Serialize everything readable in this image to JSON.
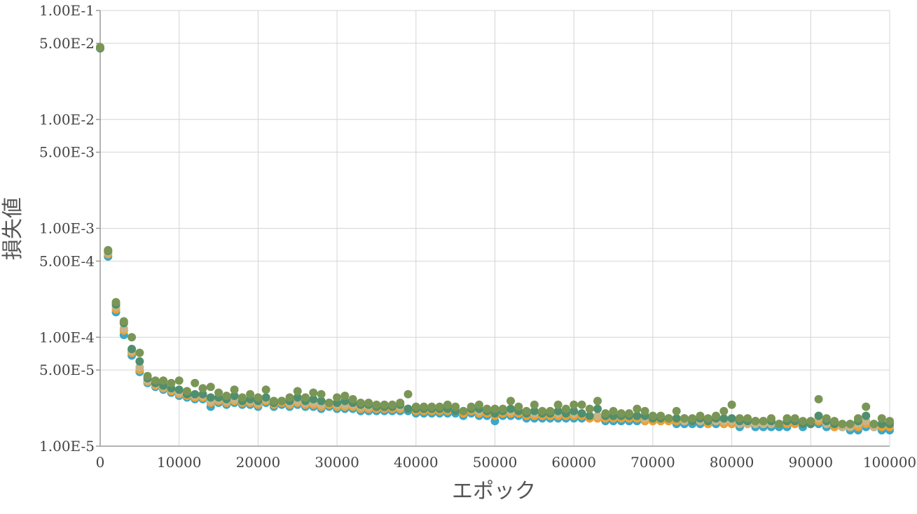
{
  "chart_data": {
    "type": "scatter",
    "title": "",
    "xlabel": "エポック",
    "ylabel": "損失値",
    "xlim": [
      0,
      100000
    ],
    "ylim": [
      1e-05,
      0.1
    ],
    "yscale": "log",
    "grid": true,
    "legend": "none",
    "x_ticks": [
      0,
      10000,
      20000,
      30000,
      40000,
      50000,
      60000,
      70000,
      80000,
      90000,
      100000
    ],
    "x_tick_labels": [
      "0",
      "10000",
      "20000",
      "30000",
      "40000",
      "50000",
      "60000",
      "70000",
      "80000",
      "90000",
      "100000"
    ],
    "y_ticks": [
      0.1,
      0.05,
      0.01,
      0.005,
      0.001,
      0.0005,
      0.0001,
      5e-05,
      1e-05
    ],
    "y_tick_labels": [
      "1.00E-1",
      "5.00E-2",
      "1.00E-2",
      "5.00E-3",
      "1.00E-3",
      "5.00E-4",
      "1.00E-4",
      "5.00E-5",
      "1.00E-5"
    ],
    "x": [
      0,
      1000,
      2000,
      3000,
      4000,
      5000,
      6000,
      7000,
      8000,
      9000,
      10000,
      11000,
      12000,
      13000,
      14000,
      15000,
      16000,
      17000,
      18000,
      19000,
      20000,
      21000,
      22000,
      23000,
      24000,
      25000,
      26000,
      27000,
      28000,
      29000,
      30000,
      31000,
      32000,
      33000,
      34000,
      35000,
      36000,
      37000,
      38000,
      39000,
      40000,
      41000,
      42000,
      43000,
      44000,
      45000,
      46000,
      47000,
      48000,
      49000,
      50000,
      51000,
      52000,
      53000,
      54000,
      55000,
      56000,
      57000,
      58000,
      59000,
      60000,
      61000,
      62000,
      63000,
      64000,
      65000,
      66000,
      67000,
      68000,
      69000,
      70000,
      71000,
      72000,
      73000,
      74000,
      75000,
      76000,
      77000,
      78000,
      79000,
      80000,
      81000,
      82000,
      83000,
      84000,
      85000,
      86000,
      87000,
      88000,
      89000,
      90000,
      91000,
      92000,
      93000,
      94000,
      95000,
      96000,
      97000,
      98000,
      99000,
      100000
    ],
    "series": [
      {
        "color": "#3aa7c9",
        "values": [
          0.045,
          0.00055,
          0.00017,
          0.000105,
          6.8e-05,
          4.8e-05,
          3.8e-05,
          3.5e-05,
          3.3e-05,
          3.1e-05,
          2.9e-05,
          2.8e-05,
          2.7e-05,
          2.7e-05,
          2.3e-05,
          2.5e-05,
          2.4e-05,
          2.5e-05,
          2.4e-05,
          2.4e-05,
          2.3e-05,
          2.5e-05,
          2.3e-05,
          2.4e-05,
          2.3e-05,
          2.4e-05,
          2.3e-05,
          2.3e-05,
          2.2e-05,
          2.3e-05,
          2.2e-05,
          2.2e-05,
          2.2e-05,
          2.1e-05,
          2.1e-05,
          2.1e-05,
          2.1e-05,
          2.1e-05,
          2.1e-05,
          2.1e-05,
          2e-05,
          2e-05,
          2e-05,
          2e-05,
          2e-05,
          2e-05,
          1.9e-05,
          2e-05,
          1.9e-05,
          1.9e-05,
          1.7e-05,
          1.9e-05,
          1.9e-05,
          1.9e-05,
          1.8e-05,
          1.8e-05,
          1.8e-05,
          1.8e-05,
          1.8e-05,
          1.8e-05,
          1.8e-05,
          1.8e-05,
          1.8e-05,
          1.8e-05,
          1.7e-05,
          1.7e-05,
          1.7e-05,
          1.7e-05,
          1.7e-05,
          1.7e-05,
          1.7e-05,
          1.7e-05,
          1.7e-05,
          1.6e-05,
          1.6e-05,
          1.6e-05,
          1.6e-05,
          1.6e-05,
          1.6e-05,
          1.6e-05,
          1.6e-05,
          1.5e-05,
          1.6e-05,
          1.5e-05,
          1.5e-05,
          1.5e-05,
          1.5e-05,
          1.5e-05,
          1.6e-05,
          1.5e-05,
          1.6e-05,
          1.6e-05,
          1.5e-05,
          1.5e-05,
          1.5e-05,
          1.4e-05,
          1.4e-05,
          1.5e-05,
          1.5e-05,
          1.4e-05,
          1.4e-05
        ]
      },
      {
        "color": "#f0a030",
        "values": [
          0.046,
          0.00058,
          0.00018,
          0.000115,
          7.2e-05,
          5e-05,
          3.9e-05,
          3.6e-05,
          3.4e-05,
          3.2e-05,
          3e-05,
          2.9e-05,
          2.8e-05,
          2.8e-05,
          2.5e-05,
          2.6e-05,
          2.5e-05,
          2.6e-05,
          2.5e-05,
          2.5e-05,
          2.4e-05,
          2.6e-05,
          2.4e-05,
          2.5e-05,
          2.4e-05,
          2.5e-05,
          2.4e-05,
          2.4e-05,
          2.3e-05,
          2.4e-05,
          2.3e-05,
          2.3e-05,
          2.3e-05,
          2.2e-05,
          2.2e-05,
          2.2e-05,
          2.2e-05,
          2.2e-05,
          2.2e-05,
          2.2e-05,
          2.1e-05,
          2.1e-05,
          2.1e-05,
          2.1e-05,
          2.1e-05,
          2.1e-05,
          2e-05,
          2.1e-05,
          2e-05,
          2e-05,
          1.9e-05,
          2e-05,
          2e-05,
          2e-05,
          1.9e-05,
          1.9e-05,
          1.9e-05,
          1.9e-05,
          1.9e-05,
          1.9e-05,
          1.9e-05,
          1.9e-05,
          1.8e-05,
          1.8e-05,
          1.8e-05,
          1.8e-05,
          1.8e-05,
          1.8e-05,
          1.8e-05,
          1.7e-05,
          1.7e-05,
          1.7e-05,
          1.7e-05,
          1.7e-05,
          1.7e-05,
          1.7e-05,
          1.7e-05,
          1.6e-05,
          1.7e-05,
          1.6e-05,
          1.6e-05,
          1.6e-05,
          1.6e-05,
          1.6e-05,
          1.6e-05,
          1.6e-05,
          1.6e-05,
          1.6e-05,
          1.6e-05,
          1.6e-05,
          1.6e-05,
          1.7e-05,
          1.6e-05,
          1.5e-05,
          1.5e-05,
          1.5e-05,
          1.5e-05,
          1.6e-05,
          1.5e-05,
          1.5e-05,
          1.5e-05
        ]
      },
      {
        "color": "#c8b48a",
        "values": [
          0.046,
          0.0006,
          0.00019,
          0.00012,
          7.5e-05,
          5.3e-05,
          4e-05,
          3.7e-05,
          3.5e-05,
          3.3e-05,
          3.1e-05,
          3e-05,
          2.9e-05,
          2.9e-05,
          2.6e-05,
          2.7e-05,
          2.6e-05,
          2.7e-05,
          2.6e-05,
          2.6e-05,
          2.5e-05,
          2.7e-05,
          2.5e-05,
          2.6e-05,
          2.5e-05,
          2.6e-05,
          2.5e-05,
          2.5e-05,
          2.4e-05,
          2.5e-05,
          2.4e-05,
          2.4e-05,
          2.4e-05,
          2.3e-05,
          2.3e-05,
          2.3e-05,
          2.3e-05,
          2.3e-05,
          2.3e-05,
          2.2e-05,
          2.2e-05,
          2.2e-05,
          2.2e-05,
          2.2e-05,
          2.2e-05,
          2.1e-05,
          2.1e-05,
          2.2e-05,
          2.1e-05,
          2.1e-05,
          2e-05,
          2.1e-05,
          2.1e-05,
          2.1e-05,
          2e-05,
          2e-05,
          2e-05,
          2e-05,
          2e-05,
          2e-05,
          2e-05,
          2e-05,
          1.9e-05,
          1.9e-05,
          1.9e-05,
          1.9e-05,
          1.9e-05,
          1.9e-05,
          1.9e-05,
          1.8e-05,
          1.8e-05,
          1.8e-05,
          1.8e-05,
          1.8e-05,
          1.7e-05,
          1.7e-05,
          1.7e-05,
          1.7e-05,
          1.7e-05,
          1.7e-05,
          1.7e-05,
          1.6e-05,
          1.6e-05,
          1.6e-05,
          1.6e-05,
          1.6e-05,
          1.6e-05,
          1.7e-05,
          1.7e-05,
          1.6e-05,
          1.6e-05,
          1.8e-05,
          1.6e-05,
          1.6e-05,
          1.5e-05,
          1.5e-05,
          1.6e-05,
          1.7e-05,
          1.5e-05,
          1.6e-05,
          1.6e-05
        ]
      },
      {
        "color": "#4f8f6e",
        "values": [
          0.045,
          0.00062,
          0.0002,
          0.000135,
          7.8e-05,
          6e-05,
          4.2e-05,
          3.8e-05,
          3.6e-05,
          3.4e-05,
          3.3e-05,
          3e-05,
          3e-05,
          3e-05,
          2.8e-05,
          2.8e-05,
          2.7e-05,
          2.9e-05,
          2.6e-05,
          2.7e-05,
          2.6e-05,
          2.8e-05,
          2.5e-05,
          2.6e-05,
          2.6e-05,
          2.8e-05,
          2.6e-05,
          2.7e-05,
          2.6e-05,
          2.5e-05,
          2.5e-05,
          2.6e-05,
          2.5e-05,
          2.4e-05,
          2.4e-05,
          2.3e-05,
          2.3e-05,
          2.3e-05,
          2.4e-05,
          2.2e-05,
          2.2e-05,
          2.2e-05,
          2.2e-05,
          2.2e-05,
          2.2e-05,
          2.1e-05,
          2.1e-05,
          2.2e-05,
          2.2e-05,
          2.1e-05,
          2e-05,
          2.1e-05,
          2.2e-05,
          2.1e-05,
          2e-05,
          2.1e-05,
          2e-05,
          2e-05,
          2.1e-05,
          2e-05,
          2.1e-05,
          2e-05,
          1.9e-05,
          2.2e-05,
          1.9e-05,
          1.9e-05,
          1.9e-05,
          1.9e-05,
          1.9e-05,
          1.9e-05,
          1.8e-05,
          1.8e-05,
          1.8e-05,
          1.8e-05,
          1.8e-05,
          1.7e-05,
          1.8e-05,
          1.7e-05,
          1.8e-05,
          1.8e-05,
          1.8e-05,
          1.7e-05,
          1.7e-05,
          1.7e-05,
          1.7e-05,
          1.7e-05,
          1.6e-05,
          1.7e-05,
          1.7e-05,
          1.6e-05,
          1.6e-05,
          1.9e-05,
          1.7e-05,
          1.6e-05,
          1.6e-05,
          1.6e-05,
          1.7e-05,
          1.9e-05,
          1.6e-05,
          1.6e-05,
          1.6e-05
        ]
      },
      {
        "color": "#7a9656",
        "values": [
          0.046,
          0.00063,
          0.00021,
          0.00014,
          0.0001,
          7.2e-05,
          4.4e-05,
          4e-05,
          4e-05,
          3.8e-05,
          4e-05,
          3.2e-05,
          3.8e-05,
          3.4e-05,
          3.5e-05,
          3.1e-05,
          2.9e-05,
          3.3e-05,
          2.8e-05,
          3e-05,
          2.8e-05,
          3.3e-05,
          2.6e-05,
          2.6e-05,
          2.8e-05,
          3.2e-05,
          2.8e-05,
          3.1e-05,
          3e-05,
          2.5e-05,
          2.8e-05,
          2.9e-05,
          2.7e-05,
          2.5e-05,
          2.5e-05,
          2.4e-05,
          2.4e-05,
          2.4e-05,
          2.5e-05,
          3e-05,
          2.3e-05,
          2.3e-05,
          2.3e-05,
          2.3e-05,
          2.4e-05,
          2.3e-05,
          2.1e-05,
          2.3e-05,
          2.4e-05,
          2.2e-05,
          2.2e-05,
          2.2e-05,
          2.6e-05,
          2.3e-05,
          2.1e-05,
          2.4e-05,
          2.1e-05,
          2.1e-05,
          2.4e-05,
          2.2e-05,
          2.4e-05,
          2.4e-05,
          2.2e-05,
          2.6e-05,
          2e-05,
          2.1e-05,
          2e-05,
          2e-05,
          2.2e-05,
          2.1e-05,
          1.9e-05,
          1.9e-05,
          1.8e-05,
          2.1e-05,
          1.8e-05,
          1.8e-05,
          1.9e-05,
          1.8e-05,
          1.9e-05,
          2.1e-05,
          2.4e-05,
          1.8e-05,
          1.8e-05,
          1.7e-05,
          1.7e-05,
          1.8e-05,
          1.6e-05,
          1.8e-05,
          1.8e-05,
          1.7e-05,
          1.7e-05,
          2.7e-05,
          1.8e-05,
          1.7e-05,
          1.6e-05,
          1.6e-05,
          1.8e-05,
          2.3e-05,
          1.6e-05,
          1.8e-05,
          1.7e-05
        ]
      }
    ]
  }
}
